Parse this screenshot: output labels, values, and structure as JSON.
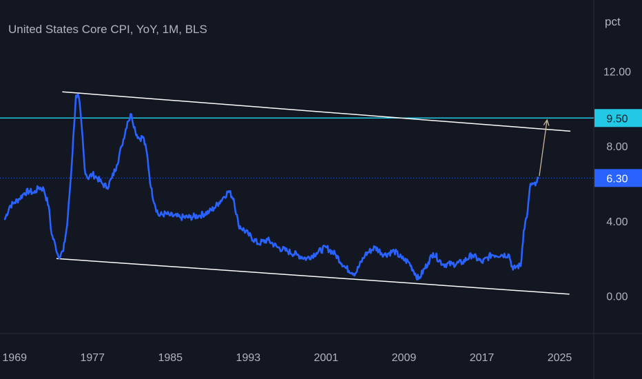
{
  "chart_data": {
    "type": "line",
    "title": "United States Core CPI, YoY, 1M, BLS",
    "ylabel": "pct",
    "x_ticks": [
      "1969",
      "1977",
      "1985",
      "1993",
      "2001",
      "2009",
      "2017",
      "2025"
    ],
    "y_ticks": [
      "0.00",
      "4.00",
      "8.00",
      "12.00"
    ],
    "xlim": [
      1967.5,
      2028.5
    ],
    "ylim": [
      -2.0,
      15.8
    ],
    "series": [
      {
        "name": "",
        "color": "#2962ff",
        "points": [
          [
            1968.0,
            4.1
          ],
          [
            1968.5,
            4.8
          ],
          [
            1969.0,
            5.0
          ],
          [
            1969.5,
            5.2
          ],
          [
            1970.0,
            5.5
          ],
          [
            1970.5,
            5.6
          ],
          [
            1971.0,
            5.5
          ],
          [
            1971.5,
            5.8
          ],
          [
            1972.0,
            5.7
          ],
          [
            1972.5,
            4.8
          ],
          [
            1972.8,
            3.3
          ],
          [
            1973.2,
            2.7
          ],
          [
            1973.5,
            2.1
          ],
          [
            1974.0,
            2.4
          ],
          [
            1974.4,
            3.8
          ],
          [
            1974.8,
            6.5
          ],
          [
            1975.1,
            9.0
          ],
          [
            1975.3,
            10.7
          ],
          [
            1975.6,
            10.6
          ],
          [
            1975.9,
            9.0
          ],
          [
            1976.2,
            6.8
          ],
          [
            1976.5,
            6.3
          ],
          [
            1977.0,
            6.5
          ],
          [
            1977.5,
            6.3
          ],
          [
            1978.0,
            6.0
          ],
          [
            1978.5,
            5.8
          ],
          [
            1979.0,
            6.3
          ],
          [
            1979.5,
            7.0
          ],
          [
            1980.0,
            8.0
          ],
          [
            1980.6,
            9.3
          ],
          [
            1981.0,
            9.7
          ],
          [
            1981.4,
            8.8
          ],
          [
            1981.8,
            8.4
          ],
          [
            1982.2,
            8.5
          ],
          [
            1982.6,
            7.6
          ],
          [
            1983.0,
            5.8
          ],
          [
            1983.4,
            4.9
          ],
          [
            1983.8,
            4.3
          ],
          [
            1984.5,
            4.4
          ],
          [
            1985.0,
            4.3
          ],
          [
            1986.0,
            4.2
          ],
          [
            1987.0,
            4.2
          ],
          [
            1988.0,
            4.3
          ],
          [
            1989.0,
            4.5
          ],
          [
            1989.5,
            4.7
          ],
          [
            1990.0,
            5.0
          ],
          [
            1990.5,
            5.3
          ],
          [
            1991.0,
            5.6
          ],
          [
            1991.5,
            5.2
          ],
          [
            1992.0,
            3.8
          ],
          [
            1993.0,
            3.3
          ],
          [
            1994.0,
            2.8
          ],
          [
            1995.0,
            3.0
          ],
          [
            1996.0,
            2.6
          ],
          [
            1997.0,
            2.4
          ],
          [
            1998.0,
            2.2
          ],
          [
            1999.0,
            2.0
          ],
          [
            2000.0,
            2.3
          ],
          [
            2001.0,
            2.6
          ],
          [
            2002.0,
            2.2
          ],
          [
            2003.0,
            1.5
          ],
          [
            2004.0,
            1.2
          ],
          [
            2005.0,
            2.2
          ],
          [
            2006.0,
            2.6
          ],
          [
            2007.0,
            2.2
          ],
          [
            2008.0,
            2.4
          ],
          [
            2008.8,
            2.0
          ],
          [
            2009.5,
            1.8
          ],
          [
            2010.5,
            0.9
          ],
          [
            2011.5,
            1.8
          ],
          [
            2012.0,
            2.3
          ],
          [
            2013.0,
            1.7
          ],
          [
            2014.0,
            1.7
          ],
          [
            2015.0,
            1.8
          ],
          [
            2016.0,
            2.2
          ],
          [
            2017.0,
            1.8
          ],
          [
            2018.0,
            2.2
          ],
          [
            2019.0,
            2.2
          ],
          [
            2019.8,
            2.2
          ],
          [
            2020.2,
            1.4
          ],
          [
            2020.6,
            1.6
          ],
          [
            2021.0,
            1.6
          ],
          [
            2021.3,
            3.5
          ],
          [
            2021.7,
            4.5
          ],
          [
            2022.0,
            6.0
          ],
          [
            2022.5,
            5.9
          ],
          [
            2022.8,
            6.3
          ]
        ]
      }
    ],
    "channel_upper": [
      [
        1973.9,
        10.9
      ],
      [
        2026.1,
        8.8
      ]
    ],
    "channel_lower": [
      [
        1973.3,
        2.0
      ],
      [
        2026.0,
        0.1
      ]
    ],
    "arrow": [
      [
        2022.9,
        6.4
      ],
      [
        2023.7,
        9.4
      ]
    ],
    "horizontal_lines": [
      {
        "value": 9.5,
        "label": "9.50",
        "color": "#22c8e4",
        "style": "solid"
      },
      {
        "value": 6.3,
        "label": "6.30",
        "color": "#2962ff",
        "style": "dotted"
      }
    ],
    "grid": false,
    "legend": "none"
  },
  "colors": {
    "background": "#131722",
    "text": "#b2b5be",
    "channel": "#ffffff",
    "arrow": "#cbb79a"
  }
}
